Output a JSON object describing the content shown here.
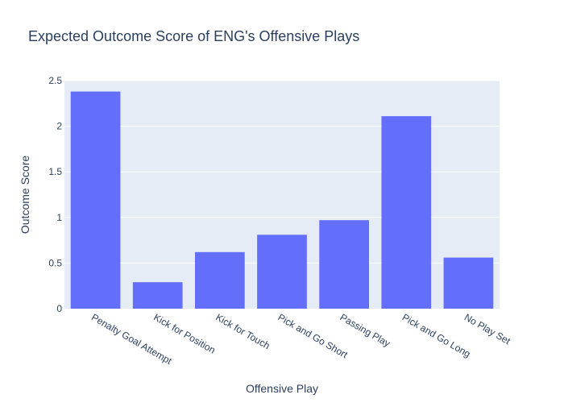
{
  "chart_data": {
    "type": "bar",
    "title": "Expected Outcome Score of ENG's Offensive Plays",
    "xlabel": "Offensive Play",
    "ylabel": "Outcome Score",
    "categories": [
      "Penalty Goal Attempt",
      "Kick for Position",
      "Kick for Touch",
      "Pick and Go Short",
      "Passing Play",
      "Pick and Go Long",
      "No Play Set"
    ],
    "values": [
      2.38,
      0.29,
      0.62,
      0.81,
      0.97,
      2.11,
      0.56
    ],
    "ylim": [
      0,
      2.5
    ],
    "yticks": [
      0,
      0.5,
      1,
      1.5,
      2,
      2.5
    ],
    "ytick_labels": [
      "0",
      "0.5",
      "1",
      "1.5",
      "2",
      "2.5"
    ],
    "grid": true,
    "legend": "none",
    "colors": {
      "bar": "#636efa",
      "plot_background": "#e5ecf6",
      "gridline": "#ffffff",
      "text": "#2a3f5f"
    }
  }
}
